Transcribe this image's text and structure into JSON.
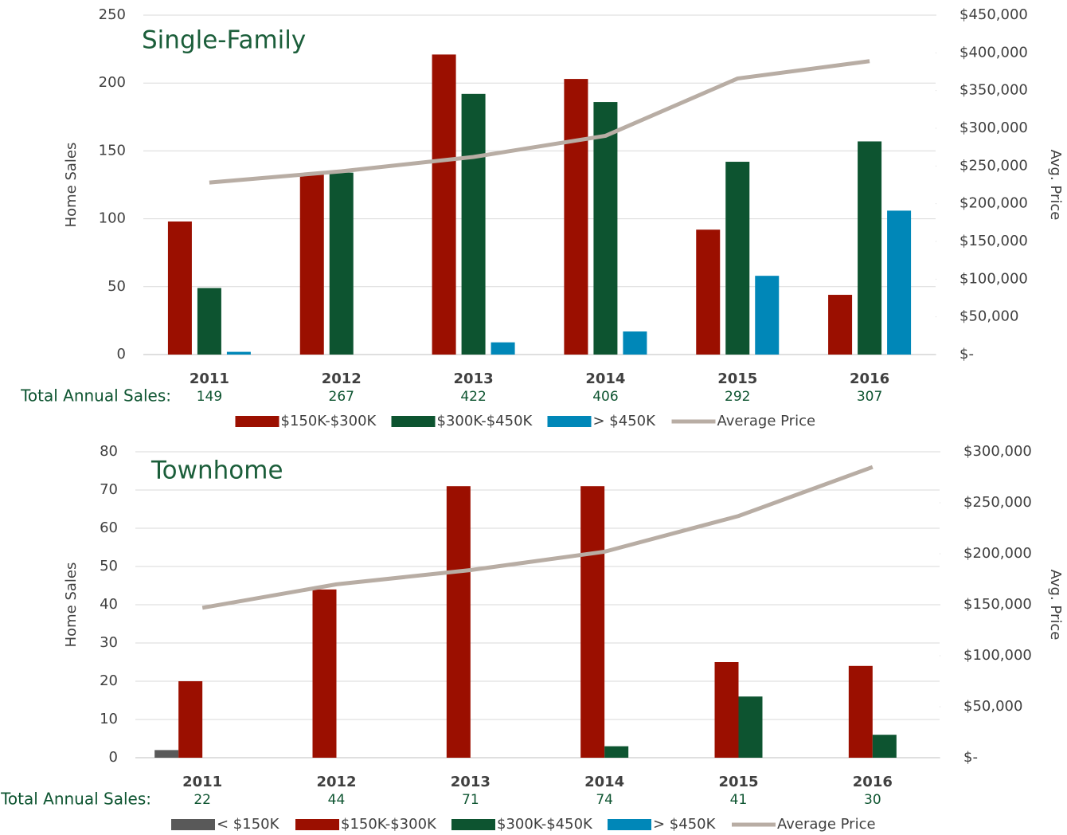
{
  "chart_data": [
    {
      "type": "bar",
      "title": "Single-Family",
      "y_label": "Home Sales",
      "y2_label": "Avg. Price",
      "categories": [
        "2011",
        "2012",
        "2013",
        "2014",
        "2015",
        "2016"
      ],
      "totals_label": "Total Annual Sales:",
      "totals": [
        149,
        267,
        422,
        406,
        292,
        307
      ],
      "series": [
        {
          "name": "$150K-$300K",
          "color": "#9b0f00",
          "values": [
            98,
            133,
            221,
            203,
            92,
            44
          ]
        },
        {
          "name": "$300K-$450K",
          "color": "#0d5430",
          "values": [
            49,
            134,
            192,
            186,
            142,
            157
          ]
        },
        {
          "name": "> $450K",
          "color": "#0087b8",
          "values": [
            2,
            0,
            9,
            17,
            58,
            106
          ]
        },
        {
          "name": "Average Price",
          "color": "#b8ada4",
          "type": "line",
          "axis": "y2",
          "values": [
            228000,
            243000,
            262000,
            290000,
            366000,
            389000
          ]
        }
      ],
      "ylim": [
        0,
        250
      ],
      "yticks": [
        0,
        50,
        100,
        150,
        200,
        250
      ],
      "y2lim": [
        0,
        450000
      ],
      "y2ticks": [
        {
          "value": 0,
          "label": "$-"
        },
        {
          "value": 50000,
          "label": "$50,000"
        },
        {
          "value": 100000,
          "label": "$100,000"
        },
        {
          "value": 150000,
          "label": "$150,000"
        },
        {
          "value": 200000,
          "label": "$200,000"
        },
        {
          "value": 250000,
          "label": "$250,000"
        },
        {
          "value": 300000,
          "label": "$300,000"
        },
        {
          "value": 350000,
          "label": "$350,000"
        },
        {
          "value": 400000,
          "label": "$400,000"
        },
        {
          "value": 450000,
          "label": "$450,000"
        }
      ],
      "grid": true
    },
    {
      "type": "bar",
      "title": "Townhome",
      "y_label": "Home Sales",
      "y2_label": "Avg. Price",
      "categories": [
        "2011",
        "2012",
        "2013",
        "2014",
        "2015",
        "2016"
      ],
      "totals_label": "Total Annual Sales:",
      "totals": [
        22,
        44,
        71,
        74,
        41,
        30
      ],
      "series": [
        {
          "name": "< $150K",
          "color": "#595959",
          "values": [
            2,
            0,
            0,
            0,
            0,
            0
          ]
        },
        {
          "name": "$150K-$300K",
          "color": "#9b0f00",
          "values": [
            20,
            44,
            71,
            71,
            25,
            24
          ]
        },
        {
          "name": "$300K-$450K",
          "color": "#0d5430",
          "values": [
            0,
            0,
            0,
            3,
            16,
            6
          ]
        },
        {
          "name": "> $450K",
          "color": "#0087b8",
          "values": [
            0,
            0,
            0,
            0,
            0,
            0
          ]
        },
        {
          "name": "Average Price",
          "color": "#b8ada4",
          "type": "line",
          "axis": "y2",
          "values": [
            147000,
            170000,
            184000,
            202000,
            237000,
            285000
          ]
        }
      ],
      "ylim": [
        0,
        80
      ],
      "yticks": [
        0,
        10,
        20,
        30,
        40,
        50,
        60,
        70,
        80
      ],
      "y2lim": [
        0,
        300000
      ],
      "y2ticks": [
        {
          "value": 0,
          "label": "$-"
        },
        {
          "value": 50000,
          "label": "$50,000"
        },
        {
          "value": 100000,
          "label": "$100,000"
        },
        {
          "value": 150000,
          "label": "$150,000"
        },
        {
          "value": 200000,
          "label": "$200,000"
        },
        {
          "value": 250000,
          "label": "$250,000"
        },
        {
          "value": 300000,
          "label": "$300,000"
        }
      ],
      "grid": true
    }
  ]
}
